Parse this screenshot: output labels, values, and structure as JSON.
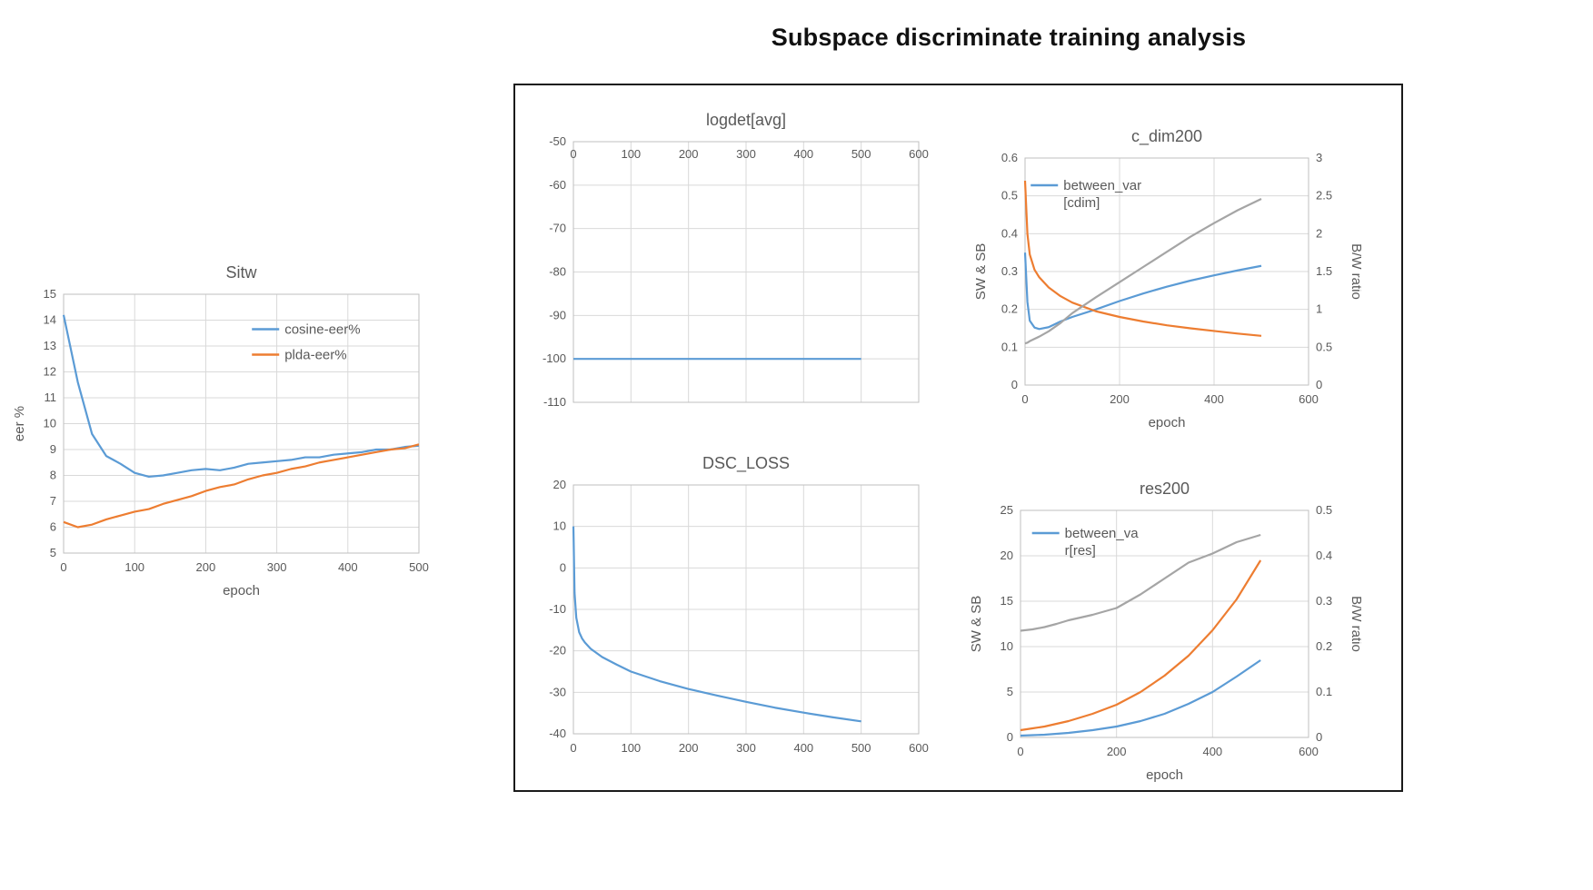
{
  "page": {
    "title": "Subspace discriminate training analysis"
  },
  "colors": {
    "blue": "#5B9BD5",
    "orange": "#ED7D31",
    "gray": "#A5A5A5",
    "grid": "#D9D9D9",
    "border": "#BFBFBF",
    "text": "#595959"
  },
  "chart_data": [
    {
      "id": "sitw",
      "type": "line",
      "title": "Sitw",
      "x": {
        "min": 0,
        "max": 500,
        "ticks": [
          0,
          100,
          200,
          300,
          400,
          500
        ],
        "label": "epoch",
        "side": "bottom"
      },
      "y_left": {
        "min": 5,
        "max": 15,
        "ticks": [
          5,
          6,
          7,
          8,
          9,
          10,
          11,
          12,
          13,
          14,
          15
        ],
        "label": "eer %"
      },
      "legend": {
        "x": 0.53,
        "y": 0.1,
        "items": [
          {
            "color": "blue",
            "lines": [
              "cosine-eer%"
            ]
          },
          {
            "color": "orange",
            "lines": [
              "plda-eer%"
            ]
          }
        ]
      },
      "series": [
        {
          "name": "cosine-eer%",
          "color": "blue",
          "axis": "left",
          "x": [
            0,
            20,
            40,
            60,
            80,
            100,
            120,
            140,
            160,
            180,
            200,
            220,
            240,
            260,
            280,
            300,
            320,
            340,
            360,
            380,
            400,
            420,
            440,
            460,
            480,
            500
          ],
          "y": [
            14.2,
            11.6,
            9.6,
            8.75,
            8.45,
            8.1,
            7.95,
            8.0,
            8.1,
            8.2,
            8.25,
            8.2,
            8.3,
            8.45,
            8.5,
            8.55,
            8.6,
            8.7,
            8.7,
            8.8,
            8.85,
            8.9,
            9.0,
            9.0,
            9.1,
            9.15
          ]
        },
        {
          "name": "plda-eer%",
          "color": "orange",
          "axis": "left",
          "x": [
            0,
            20,
            40,
            60,
            80,
            100,
            120,
            140,
            160,
            180,
            200,
            220,
            240,
            260,
            280,
            300,
            320,
            340,
            360,
            380,
            400,
            420,
            440,
            460,
            480,
            500
          ],
          "y": [
            6.2,
            6.0,
            6.1,
            6.3,
            6.45,
            6.6,
            6.7,
            6.9,
            7.05,
            7.2,
            7.4,
            7.55,
            7.65,
            7.85,
            8.0,
            8.1,
            8.25,
            8.35,
            8.5,
            8.6,
            8.7,
            8.8,
            8.9,
            9.0,
            9.05,
            9.2
          ]
        }
      ]
    },
    {
      "id": "logdet",
      "type": "line",
      "title": "logdet[avg]",
      "x": {
        "min": 0,
        "max": 600,
        "ticks": [
          0,
          100,
          200,
          300,
          400,
          500,
          600
        ],
        "label": "",
        "side": "top"
      },
      "y_left": {
        "min": -110,
        "max": -50,
        "ticks": [
          -110,
          -100,
          -90,
          -80,
          -70,
          -60,
          -50
        ],
        "label": ""
      },
      "series": [
        {
          "name": "",
          "color": "blue",
          "axis": "left",
          "x": [
            0,
            100,
            200,
            300,
            400,
            500
          ],
          "y": [
            -100,
            -100,
            -100,
            -100,
            -100,
            -100
          ]
        }
      ]
    },
    {
      "id": "cdim",
      "type": "line",
      "title": "c_dim200",
      "x": {
        "min": 0,
        "max": 600,
        "ticks": [
          0,
          200,
          400,
          600
        ],
        "label": "epoch",
        "side": "bottom"
      },
      "y_left": {
        "min": 0,
        "max": 0.6,
        "ticks": [
          0,
          0.1,
          0.2,
          0.3,
          0.4,
          0.5,
          0.6
        ],
        "label": "SW & SB"
      },
      "y_right": {
        "min": 0,
        "max": 3,
        "ticks": [
          0,
          0.5,
          1,
          1.5,
          2,
          2.5,
          3
        ],
        "label": "B/W ratio"
      },
      "legend": {
        "x": 0.02,
        "y": 0.08,
        "items": [
          {
            "color": "blue",
            "lines": [
              "between_var",
              "[cdim]"
            ]
          }
        ]
      },
      "series": [
        {
          "name": "between_var [cdim]",
          "color": "blue",
          "axis": "left",
          "x": [
            0,
            5,
            10,
            20,
            30,
            50,
            75,
            100,
            150,
            200,
            250,
            300,
            350,
            400,
            450,
            500
          ],
          "y": [
            0.35,
            0.22,
            0.17,
            0.152,
            0.148,
            0.153,
            0.168,
            0.18,
            0.2,
            0.222,
            0.242,
            0.26,
            0.276,
            0.29,
            0.303,
            0.315
          ]
        },
        {
          "name": "",
          "color": "orange",
          "axis": "left",
          "x": [
            0,
            5,
            10,
            20,
            30,
            50,
            75,
            100,
            150,
            200,
            250,
            300,
            350,
            400,
            450,
            500
          ],
          "y": [
            0.54,
            0.4,
            0.345,
            0.305,
            0.285,
            0.258,
            0.235,
            0.218,
            0.195,
            0.18,
            0.168,
            0.158,
            0.15,
            0.143,
            0.136,
            0.13
          ]
        },
        {
          "name": "",
          "color": "gray",
          "axis": "right",
          "x": [
            0,
            5,
            10,
            20,
            30,
            50,
            75,
            100,
            150,
            200,
            250,
            300,
            350,
            400,
            450,
            500
          ],
          "y": [
            0.55,
            0.56,
            0.58,
            0.61,
            0.64,
            0.71,
            0.82,
            0.95,
            1.16,
            1.36,
            1.56,
            1.76,
            1.96,
            2.14,
            2.31,
            2.46
          ]
        }
      ]
    },
    {
      "id": "dsc",
      "type": "line",
      "title": "DSC_LOSS",
      "x": {
        "min": 0,
        "max": 600,
        "ticks": [
          0,
          100,
          200,
          300,
          400,
          500,
          600
        ],
        "label": "",
        "side": "bottom"
      },
      "y_left": {
        "min": -40,
        "max": 20,
        "ticks": [
          -40,
          -30,
          -20,
          -10,
          0,
          10,
          20
        ],
        "label": ""
      },
      "series": [
        {
          "name": "",
          "color": "blue",
          "axis": "left",
          "x": [
            0,
            2,
            5,
            10,
            15,
            20,
            30,
            50,
            75,
            100,
            150,
            200,
            250,
            300,
            350,
            400,
            450,
            500
          ],
          "y": [
            10,
            -6,
            -12,
            -15.5,
            -17,
            -18,
            -19.5,
            -21.5,
            -23.3,
            -25,
            -27.3,
            -29.2,
            -30.8,
            -32.3,
            -33.7,
            -34.9,
            -36,
            -37
          ]
        }
      ]
    },
    {
      "id": "res",
      "type": "line",
      "title": "res200",
      "x": {
        "min": 0,
        "max": 600,
        "ticks": [
          0,
          200,
          400,
          600
        ],
        "label": "epoch",
        "side": "bottom"
      },
      "y_left": {
        "min": 0,
        "max": 25,
        "ticks": [
          0,
          5,
          10,
          15,
          20,
          25
        ],
        "label": "SW & SB"
      },
      "y_right": {
        "min": 0,
        "max": 0.5,
        "ticks": [
          0,
          0.1,
          0.2,
          0.3,
          0.4,
          0.5
        ],
        "label": "B/W ratio"
      },
      "legend": {
        "x": 0.04,
        "y": 0.06,
        "items": [
          {
            "color": "blue",
            "lines": [
              "between_va",
              "r[res]"
            ]
          }
        ]
      },
      "series": [
        {
          "name": "between_va r[res]",
          "color": "blue",
          "axis": "left",
          "x": [
            0,
            25,
            50,
            75,
            100,
            150,
            200,
            250,
            300,
            350,
            400,
            450,
            500
          ],
          "y": [
            0.2,
            0.25,
            0.3,
            0.4,
            0.5,
            0.8,
            1.2,
            1.8,
            2.6,
            3.7,
            5.0,
            6.7,
            8.5
          ]
        },
        {
          "name": "",
          "color": "orange",
          "axis": "left",
          "x": [
            0,
            25,
            50,
            75,
            100,
            150,
            200,
            250,
            300,
            350,
            400,
            450,
            500
          ],
          "y": [
            0.8,
            1.0,
            1.2,
            1.5,
            1.8,
            2.6,
            3.6,
            5.0,
            6.8,
            9.0,
            11.8,
            15.2,
            19.5
          ]
        },
        {
          "name": "",
          "color": "gray",
          "axis": "right",
          "x": [
            0,
            25,
            50,
            75,
            100,
            150,
            200,
            250,
            300,
            350,
            400,
            450,
            500
          ],
          "y": [
            0.235,
            0.238,
            0.243,
            0.25,
            0.258,
            0.27,
            0.285,
            0.315,
            0.35,
            0.385,
            0.405,
            0.43,
            0.446
          ]
        }
      ]
    }
  ]
}
